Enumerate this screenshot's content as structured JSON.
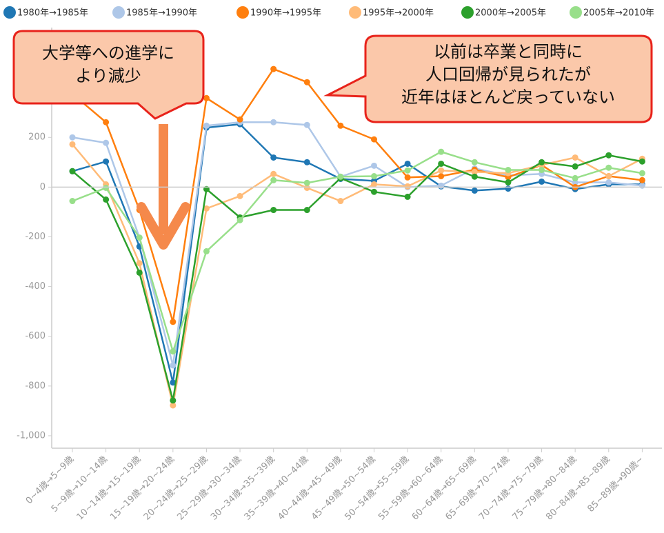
{
  "chart_data": {
    "type": "line",
    "categories": [
      "0~4歳→5~9歳",
      "5~9歳→10~14歳",
      "10~14歳→15~19歳",
      "15~19歳→20~24歳",
      "20~24歳→25~29歳",
      "25~29歳→30~34歳",
      "30~34歳→35~39歳",
      "35~39歳→40~44歳",
      "40~44歳→45~49歳",
      "45~49歳→50~54歳",
      "50~54歳→55~59歳",
      "55~59歳→60~64歳",
      "60~64歳→65~69歳",
      "65~69歳→70~74歳",
      "70~74歳→75~79歳",
      "75~79歳→80~84歳",
      "80~84歳→85~89歳",
      "85~89歳→90歳~"
    ],
    "series": [
      {
        "name": "1980年→1985年",
        "color": "#1f77b4",
        "values": [
          64,
          103,
          -239,
          -786,
          239,
          253,
          119,
          100,
          33,
          25,
          94,
          3,
          -14,
          -6,
          22,
          -8,
          11,
          11
        ]
      },
      {
        "name": "1985年→1990年",
        "color": "#aec7e8",
        "values": [
          200,
          178,
          -203,
          -717,
          247,
          261,
          261,
          250,
          42,
          86,
          0,
          6,
          75,
          47,
          53,
          19,
          19,
          6
        ]
      },
      {
        "name": "1990年→1995年",
        "color": "#ff7f0e",
        "values": [
          375,
          261,
          -92,
          -542,
          358,
          272,
          475,
          422,
          247,
          192,
          39,
          44,
          70,
          40,
          89,
          0,
          44,
          28
        ]
      },
      {
        "name": "1995年→2000年",
        "color": "#ffbb78",
        "values": [
          172,
          11,
          -306,
          -878,
          -86,
          -36,
          53,
          -3,
          -56,
          11,
          3,
          67,
          61,
          56,
          89,
          119,
          44,
          114
        ]
      },
      {
        "name": "2000年→2005年",
        "color": "#2ca02c",
        "values": [
          64,
          -50,
          -344,
          -858,
          -8,
          -122,
          -92,
          -92,
          36,
          -19,
          -39,
          94,
          42,
          19,
          100,
          83,
          128,
          103
        ]
      },
      {
        "name": "2005年→2010年",
        "color": "#98df8a",
        "values": [
          -56,
          -3,
          -203,
          -661,
          -258,
          -133,
          28,
          17,
          42,
          44,
          67,
          142,
          100,
          69,
          69,
          36,
          78,
          56
        ]
      }
    ],
    "ylim": [
      -1050,
      600
    ],
    "yticks": [
      {
        "value": -1000,
        "label": "-1,000"
      },
      -800,
      -600,
      -400,
      -200,
      0,
      200
    ],
    "grid": false,
    "legend": "top",
    "annotations": [
      {
        "lines": [
          "大学等への進学に",
          "より減少"
        ]
      },
      {
        "lines": [
          "以前は卒業と同時に",
          "人口回帰が見られたが",
          "近年はほとんど戻っていない"
        ]
      }
    ]
  }
}
